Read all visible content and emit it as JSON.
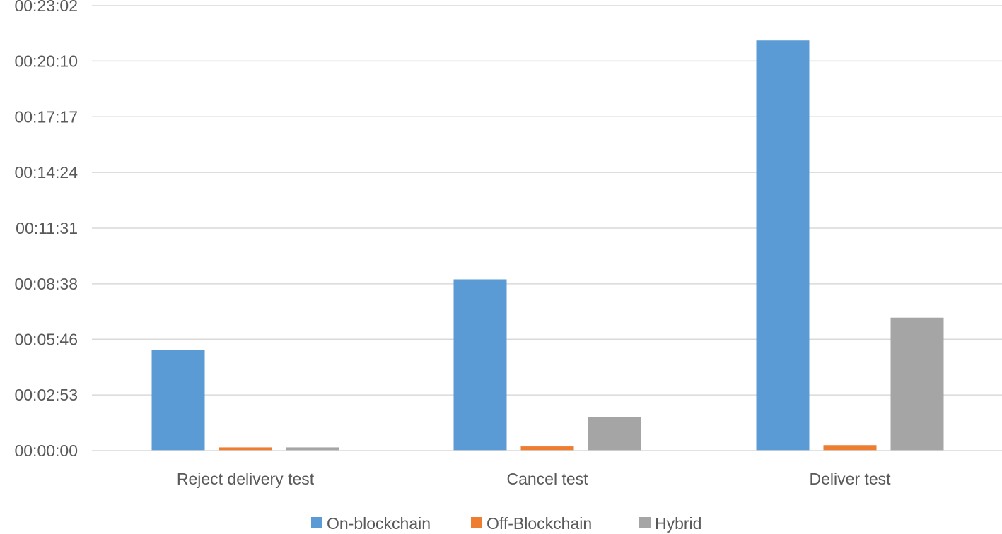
{
  "chart_data": {
    "type": "bar",
    "categories": [
      "Reject delivery test",
      "Cancel test",
      "Deliver test"
    ],
    "series": [
      {
        "name": "On-blockchain",
        "color": "#5b9bd5",
        "values": [
          "00:05:13",
          "00:08:52",
          "00:21:14"
        ]
      },
      {
        "name": "Off-Blockchain",
        "color": "#ed7d31",
        "values": [
          "00:00:10",
          "00:00:13",
          "00:00:17"
        ]
      },
      {
        "name": "Hybrid",
        "color": "#a5a5a5",
        "values": [
          "00:00:10",
          "00:01:44",
          "00:06:53"
        ]
      }
    ],
    "y_ticks": [
      "00:00:00",
      "00:02:53",
      "00:05:46",
      "00:08:38",
      "00:11:31",
      "00:14:24",
      "00:17:17",
      "00:20:10",
      "00:23:02"
    ],
    "ylim": [
      "00:00:00",
      "00:23:02"
    ],
    "grid": true,
    "legend_position": "bottom"
  }
}
